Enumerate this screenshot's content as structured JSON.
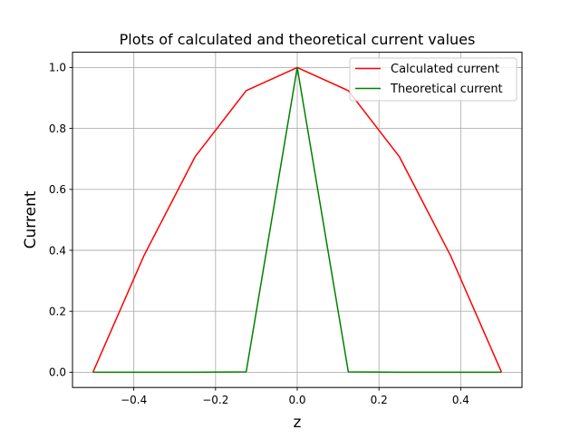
{
  "chart_data": {
    "type": "line",
    "title": "Plots of calculated and theoretical current values",
    "xlabel": "z",
    "ylabel": "Current",
    "xlim": [
      -0.55,
      0.55
    ],
    "ylim": [
      -0.05,
      1.05
    ],
    "xticks": [
      -0.4,
      -0.2,
      0.0,
      0.2,
      0.4
    ],
    "xtick_labels": [
      "−0.4",
      "−0.2",
      "0.0",
      "0.2",
      "0.4"
    ],
    "yticks": [
      0.0,
      0.2,
      0.4,
      0.6,
      0.8,
      1.0
    ],
    "ytick_labels": [
      "0.0",
      "0.2",
      "0.4",
      "0.6",
      "0.8",
      "1.0"
    ],
    "grid": true,
    "legend_position": "top-right",
    "series": [
      {
        "name": "Calculated current",
        "color": "#ff0000",
        "x": [
          -0.5,
          -0.375,
          -0.25,
          -0.125,
          0.0,
          0.125,
          0.25,
          0.375,
          0.5
        ],
        "y": [
          0.0,
          0.383,
          0.707,
          0.924,
          1.0,
          0.924,
          0.707,
          0.383,
          0.0
        ]
      },
      {
        "name": "Theoretical current",
        "color": "#008000",
        "x": [
          -0.5,
          -0.375,
          -0.25,
          -0.125,
          0.0,
          0.125,
          0.25,
          0.375,
          0.5
        ],
        "y": [
          0.0,
          0.0,
          0.0,
          0.001,
          1.0,
          0.001,
          0.0,
          0.0,
          0.0
        ]
      }
    ]
  }
}
